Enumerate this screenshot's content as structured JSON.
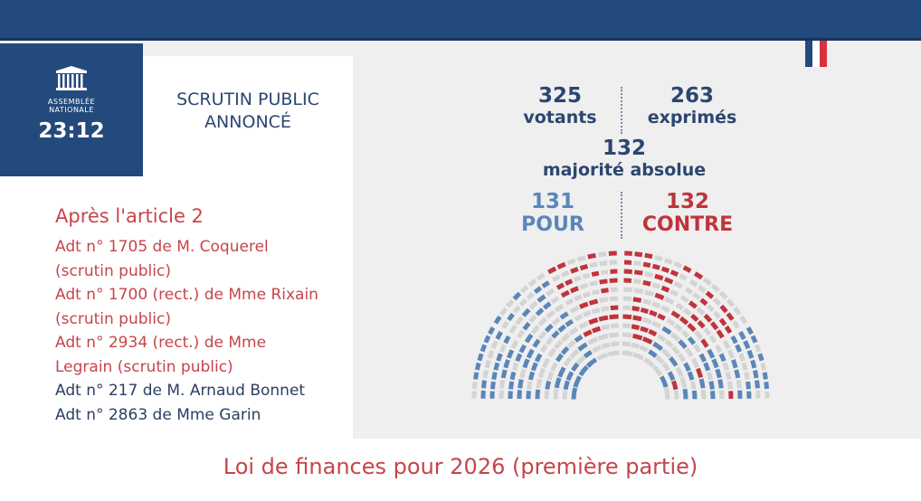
{
  "header": {
    "logo_text": [
      "ASSEMBLÉE",
      "NATIONALE"
    ],
    "time": "23:12",
    "title_line1": "SCRUTIN PUBLIC",
    "title_line2": "ANNONCÉ"
  },
  "agenda": {
    "heading": "Après l'article 2",
    "items": [
      {
        "text": "Adt n° 1705 de M. Coquerel",
        "color": "red"
      },
      {
        "text": "(scrutin public)",
        "color": "red"
      },
      {
        "text": "Adt n° 1700 (rect.) de Mme Rixain",
        "color": "red"
      },
      {
        "text": "(scrutin public)",
        "color": "red"
      },
      {
        "text": "Adt n° 2934 (rect.) de Mme",
        "color": "red"
      },
      {
        "text": "Legrain (scrutin public)",
        "color": "red"
      },
      {
        "text": "Adt n° 217 de M. Arnaud Bonnet",
        "color": "dark"
      },
      {
        "text": "Adt n° 2863 de Mme Garin",
        "color": "dark"
      }
    ]
  },
  "results": {
    "votants": "325",
    "votants_label": "votants",
    "exprimes": "263",
    "exprimes_label": "exprimés",
    "majorite": "132",
    "majorite_label": "majorité absolue",
    "pour": "131",
    "pour_label": "POUR",
    "contre": "132",
    "contre_label": "CONTRE"
  },
  "footer": {
    "title": "Loi de finances pour 2026 (première partie)"
  },
  "colors": {
    "navy": "#234a7c",
    "pour": "#5b86b8",
    "contre": "#c0343c",
    "absent": "#d4d4d4",
    "accent_red": "#c6454a"
  }
}
